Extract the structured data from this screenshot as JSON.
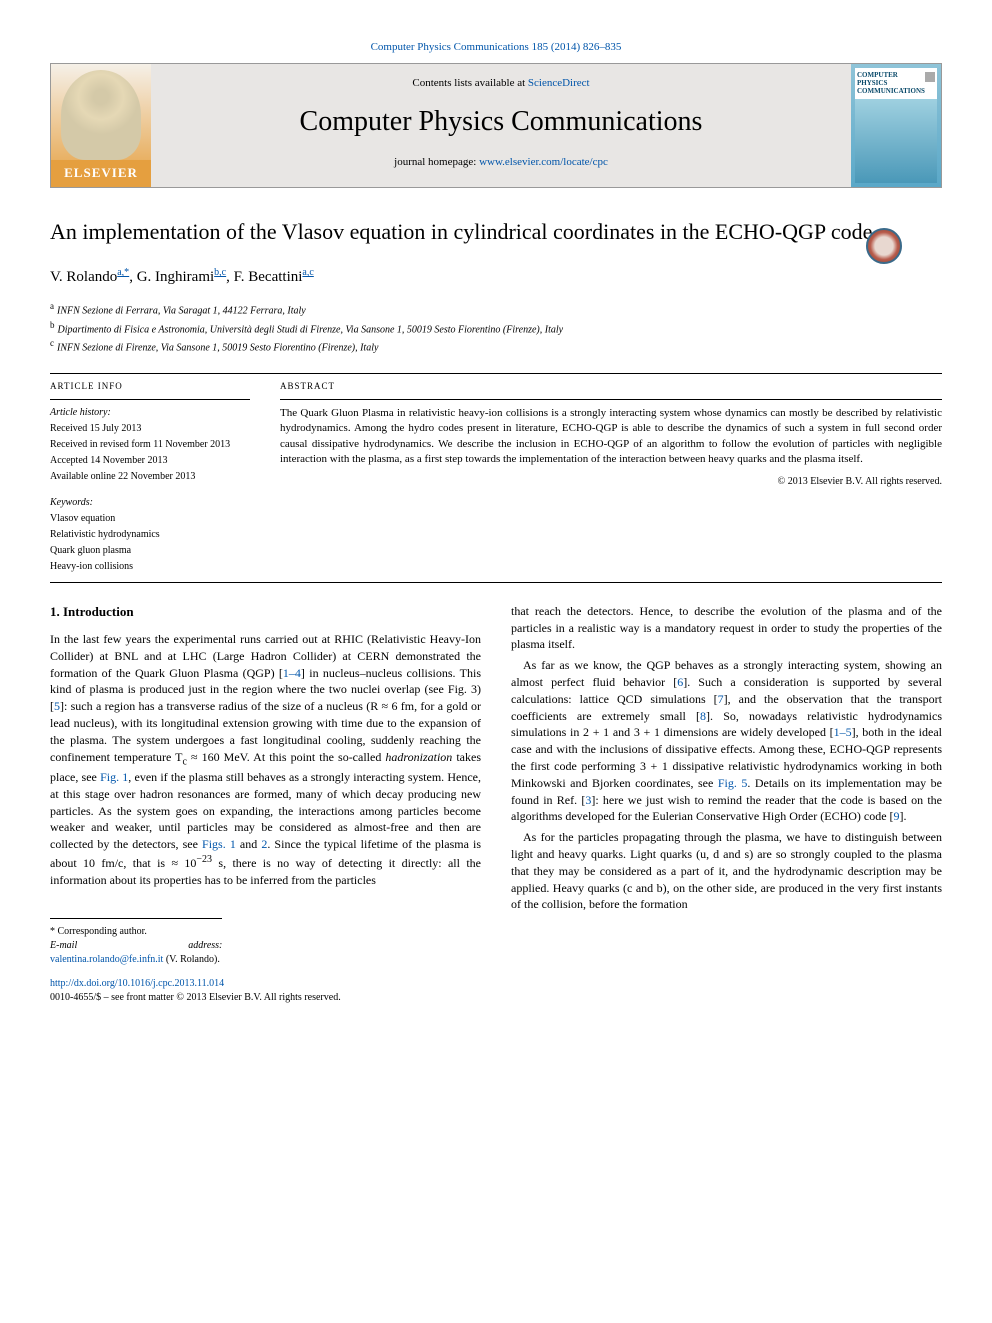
{
  "top_citation": "Computer Physics Communications 185 (2014) 826–835",
  "header": {
    "contents_prefix": "Contents lists available at ",
    "contents_link": "ScienceDirect",
    "journal_name": "Computer Physics Communications",
    "homepage_prefix": "journal homepage: ",
    "homepage_link": "www.elsevier.com/locate/cpc",
    "elsevier": "ELSEVIER",
    "cover_title": "COMPUTER PHYSICS COMMUNICATIONS"
  },
  "title": "An implementation of the Vlasov equation in cylindrical coordinates in the ECHO-QGP code",
  "authors": [
    {
      "name": "V. Rolando",
      "affils": "a,*"
    },
    {
      "name": "G. Inghirami",
      "affils": "b,c"
    },
    {
      "name": "F. Becattini",
      "affils": "a,c"
    }
  ],
  "affiliations": [
    {
      "sup": "a",
      "text": "INFN Sezione di Ferrara, Via Saragat 1, 44122 Ferrara, Italy"
    },
    {
      "sup": "b",
      "text": "Dipartimento di Fisica e Astronomia, Università degli Studi di Firenze, Via Sansone 1, 50019 Sesto Fiorentino (Firenze), Italy"
    },
    {
      "sup": "c",
      "text": "INFN Sezione di Firenze, Via Sansone 1, 50019 Sesto Fiorentino (Firenze), Italy"
    }
  ],
  "article_info": {
    "heading": "ARTICLE INFO",
    "history_head": "Article history:",
    "history": [
      "Received 15 July 2013",
      "Received in revised form 11 November 2013",
      "Accepted 14 November 2013",
      "Available online 22 November 2013"
    ],
    "keywords_head": "Keywords:",
    "keywords": [
      "Vlasov equation",
      "Relativistic hydrodynamics",
      "Quark gluon plasma",
      "Heavy-ion collisions"
    ]
  },
  "abstract": {
    "heading": "ABSTRACT",
    "text": "The Quark Gluon Plasma in relativistic heavy-ion collisions is a strongly interacting system whose dynamics can mostly be described by relativistic hydrodynamics. Among the hydro codes present in literature, ECHO-QGP is able to describe the dynamics of such a system in full second order causal dissipative hydrodynamics. We describe the inclusion in ECHO-QGP of an algorithm to follow the evolution of particles with negligible interaction with the plasma, as a first step towards the implementation of the interaction between heavy quarks and the plasma itself.",
    "copyright": "© 2013 Elsevier B.V. All rights reserved."
  },
  "section1": {
    "heading": "1. Introduction",
    "paragraphs": [
      "In the last few years the experimental runs carried out at RHIC (Relativistic Heavy-Ion Collider) at BNL and at LHC (Large Hadron Collider) at CERN demonstrated the formation of the Quark Gluon Plasma (QGP) [1–4] in nucleus–nucleus collisions. This kind of plasma is produced just in the region where the two nuclei overlap (see Fig. 3) [5]: such a region has a transverse radius of the size of a nucleus (R ≈ 6 fm, for a gold or lead nucleus), with its longitudinal extension growing with time due to the expansion of the plasma. The system undergoes a fast longitudinal cooling, suddenly reaching the confinement temperature T_c ≈ 160 MeV. At this point the so-called hadronization takes place, see Fig. 1, even if the plasma still behaves as a strongly interacting system. Hence, at this stage over hadron resonances are formed, many of which decay producing new particles. As the system goes on expanding, the interactions among particles become weaker and weaker, until particles may be considered as almost-free and then are collected by the detectors, see Figs. 1 and 2. Since the typical lifetime of the plasma is about 10 fm/c, that is ≈ 10^{-23} s, there is no way of detecting it directly: all the information about its properties has to be inferred from the particles",
      "that reach the detectors. Hence, to describe the evolution of the plasma and of the particles in a realistic way is a mandatory request in order to study the properties of the plasma itself.",
      "As far as we know, the QGP behaves as a strongly interacting system, showing an almost perfect fluid behavior [6]. Such a consideration is supported by several calculations: lattice QCD simulations [7], and the observation that the transport coefficients are extremely small [8]. So, nowadays relativistic hydrodynamics simulations in 2 + 1 and 3 + 1 dimensions are widely developed [1–5], both in the ideal case and with the inclusions of dissipative effects. Among these, ECHO-QGP represents the first code performing 3 + 1 dissipative relativistic hydrodynamics working in both Minkowski and Bjorken coordinates, see Fig. 5. Details on its implementation may be found in Ref. [3]: here we just wish to remind the reader that the code is based on the algorithms developed for the Eulerian Conservative High Order (ECHO) code [9].",
      "As for the particles propagating through the plasma, we have to distinguish between light and heavy quarks. Light quarks (u, d and s) are so strongly coupled to the plasma that they may be considered as a part of it, and the hydrodynamic description may be applied. Heavy quarks (c and b), on the other side, are produced in the very first instants of the collision, before the formation"
    ]
  },
  "footnotes": {
    "star": "* Corresponding author.",
    "email_label": "E-mail address: ",
    "email": "valentina.rolando@fe.infn.it",
    "email_paren": " (V. Rolando)."
  },
  "doi": {
    "link": "http://dx.doi.org/10.1016/j.cpc.2013.11.014",
    "rest": "0010-4655/$ – see front matter © 2013 Elsevier B.V. All rights reserved."
  },
  "colors": {
    "link": "#0055aa",
    "elsevier_orange": "#e59f3f"
  }
}
